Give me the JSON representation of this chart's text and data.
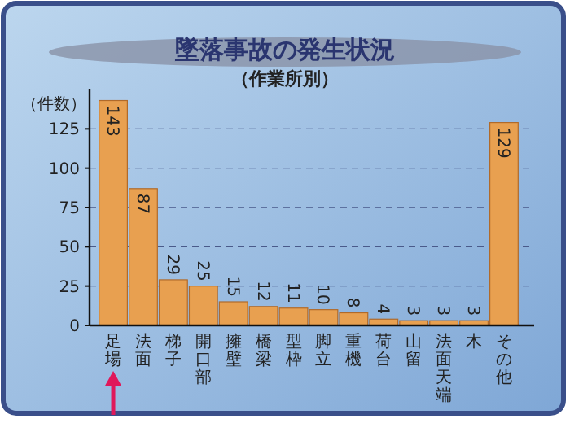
{
  "chart_data": {
    "type": "bar",
    "title": "墜落事故の発生状況",
    "subtitle": "（作業所別）",
    "ylabel": "（件数）",
    "categories": [
      "足場",
      "法面",
      "梯子",
      "開口部",
      "擁壁",
      "橋梁",
      "型枠",
      "脚立",
      "重機",
      "荷台",
      "山留",
      "法面天端",
      "木",
      "その他"
    ],
    "values": [
      143,
      87,
      29,
      25,
      15,
      12,
      11,
      10,
      8,
      4,
      3,
      3,
      3,
      129
    ],
    "color": "#e8a050",
    "data_labels": true,
    "ylim": [
      0,
      150
    ],
    "yticks": [
      0,
      25,
      50,
      75,
      100,
      125
    ],
    "grid": "y"
  }
}
